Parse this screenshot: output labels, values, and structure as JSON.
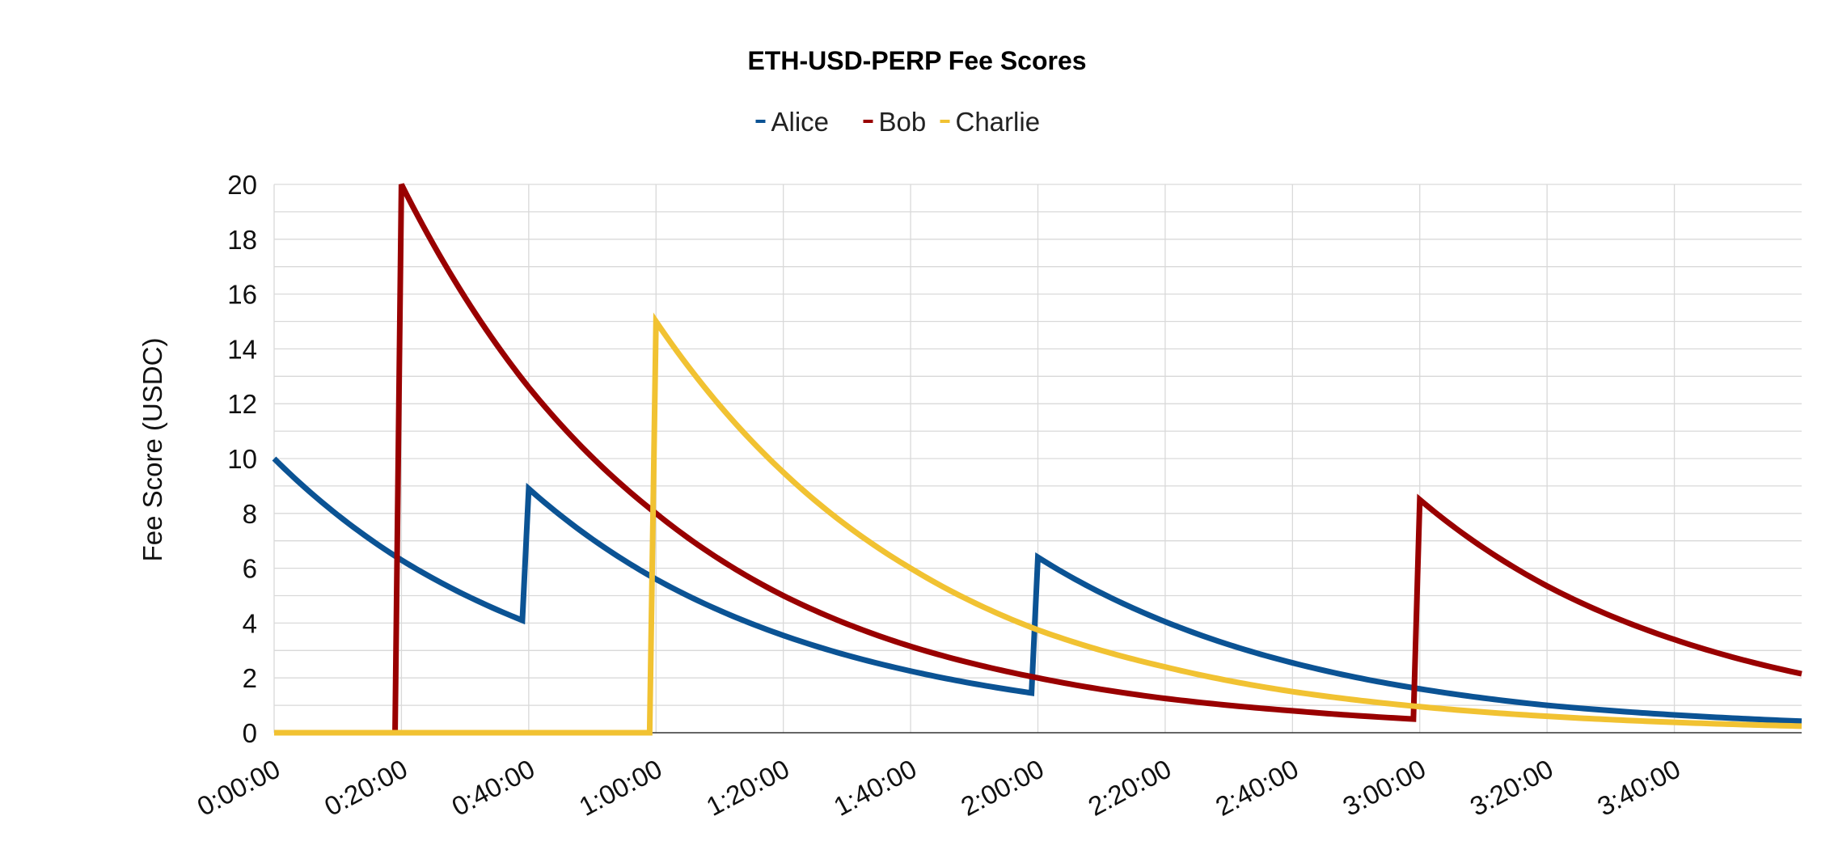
{
  "chart_data": {
    "type": "line",
    "title": "ETH-USD-PERP Fee Scores",
    "ylabel": "Fee Score (USDC)",
    "xlabel": "",
    "ylim": [
      0,
      20
    ],
    "xlim_seconds": [
      0,
      14400
    ],
    "yticks": [
      0,
      2,
      4,
      6,
      8,
      10,
      12,
      14,
      16,
      18,
      20
    ],
    "xticks": [
      {
        "label": "0:00:00",
        "value": 0
      },
      {
        "label": "0:20:00",
        "value": 1200
      },
      {
        "label": "0:40:00",
        "value": 2400
      },
      {
        "label": "1:00:00",
        "value": 3600
      },
      {
        "label": "1:20:00",
        "value": 4800
      },
      {
        "label": "1:40:00",
        "value": 6000
      },
      {
        "label": "2:00:00",
        "value": 7200
      },
      {
        "label": "2:20:00",
        "value": 8400
      },
      {
        "label": "2:40:00",
        "value": 9600
      },
      {
        "label": "3:00:00",
        "value": 10800
      },
      {
        "label": "3:20:00",
        "value": 12000
      },
      {
        "label": "3:40:00",
        "value": 13200
      }
    ],
    "grid": true,
    "legend_position": "top-center",
    "series": [
      {
        "name": "Alice",
        "color": "#0b5394",
        "points": [
          [
            0,
            10.0
          ],
          [
            1200,
            6.3
          ],
          [
            2340,
            4.1
          ],
          [
            2400,
            8.9
          ],
          [
            3600,
            5.6
          ],
          [
            4800,
            3.55
          ],
          [
            6000,
            2.25
          ],
          [
            7140,
            1.45
          ],
          [
            7200,
            6.4
          ],
          [
            8400,
            4.05
          ],
          [
            9600,
            2.55
          ],
          [
            10800,
            1.6
          ],
          [
            12000,
            1.0
          ],
          [
            13200,
            0.65
          ],
          [
            14400,
            0.42
          ]
        ]
      },
      {
        "name": "Bob",
        "color": "#990000",
        "points": [
          [
            0,
            0.0
          ],
          [
            1140,
            0.0
          ],
          [
            1200,
            20.0
          ],
          [
            2400,
            12.6
          ],
          [
            3600,
            8.0
          ],
          [
            4800,
            5.0
          ],
          [
            6000,
            3.15
          ],
          [
            7200,
            2.0
          ],
          [
            8400,
            1.25
          ],
          [
            9600,
            0.8
          ],
          [
            10740,
            0.5
          ],
          [
            10800,
            8.5
          ],
          [
            12000,
            5.35
          ],
          [
            13200,
            3.4
          ],
          [
            14400,
            2.15
          ]
        ]
      },
      {
        "name": "Charlie",
        "color": "#f1c232",
        "points": [
          [
            0,
            0.0
          ],
          [
            3540,
            0.0
          ],
          [
            3600,
            15.0
          ],
          [
            4800,
            9.5
          ],
          [
            6000,
            6.0
          ],
          [
            7200,
            3.75
          ],
          [
            8400,
            2.4
          ],
          [
            9600,
            1.5
          ],
          [
            10800,
            0.95
          ],
          [
            12000,
            0.6
          ],
          [
            13200,
            0.38
          ],
          [
            14400,
            0.24
          ]
        ]
      }
    ]
  }
}
